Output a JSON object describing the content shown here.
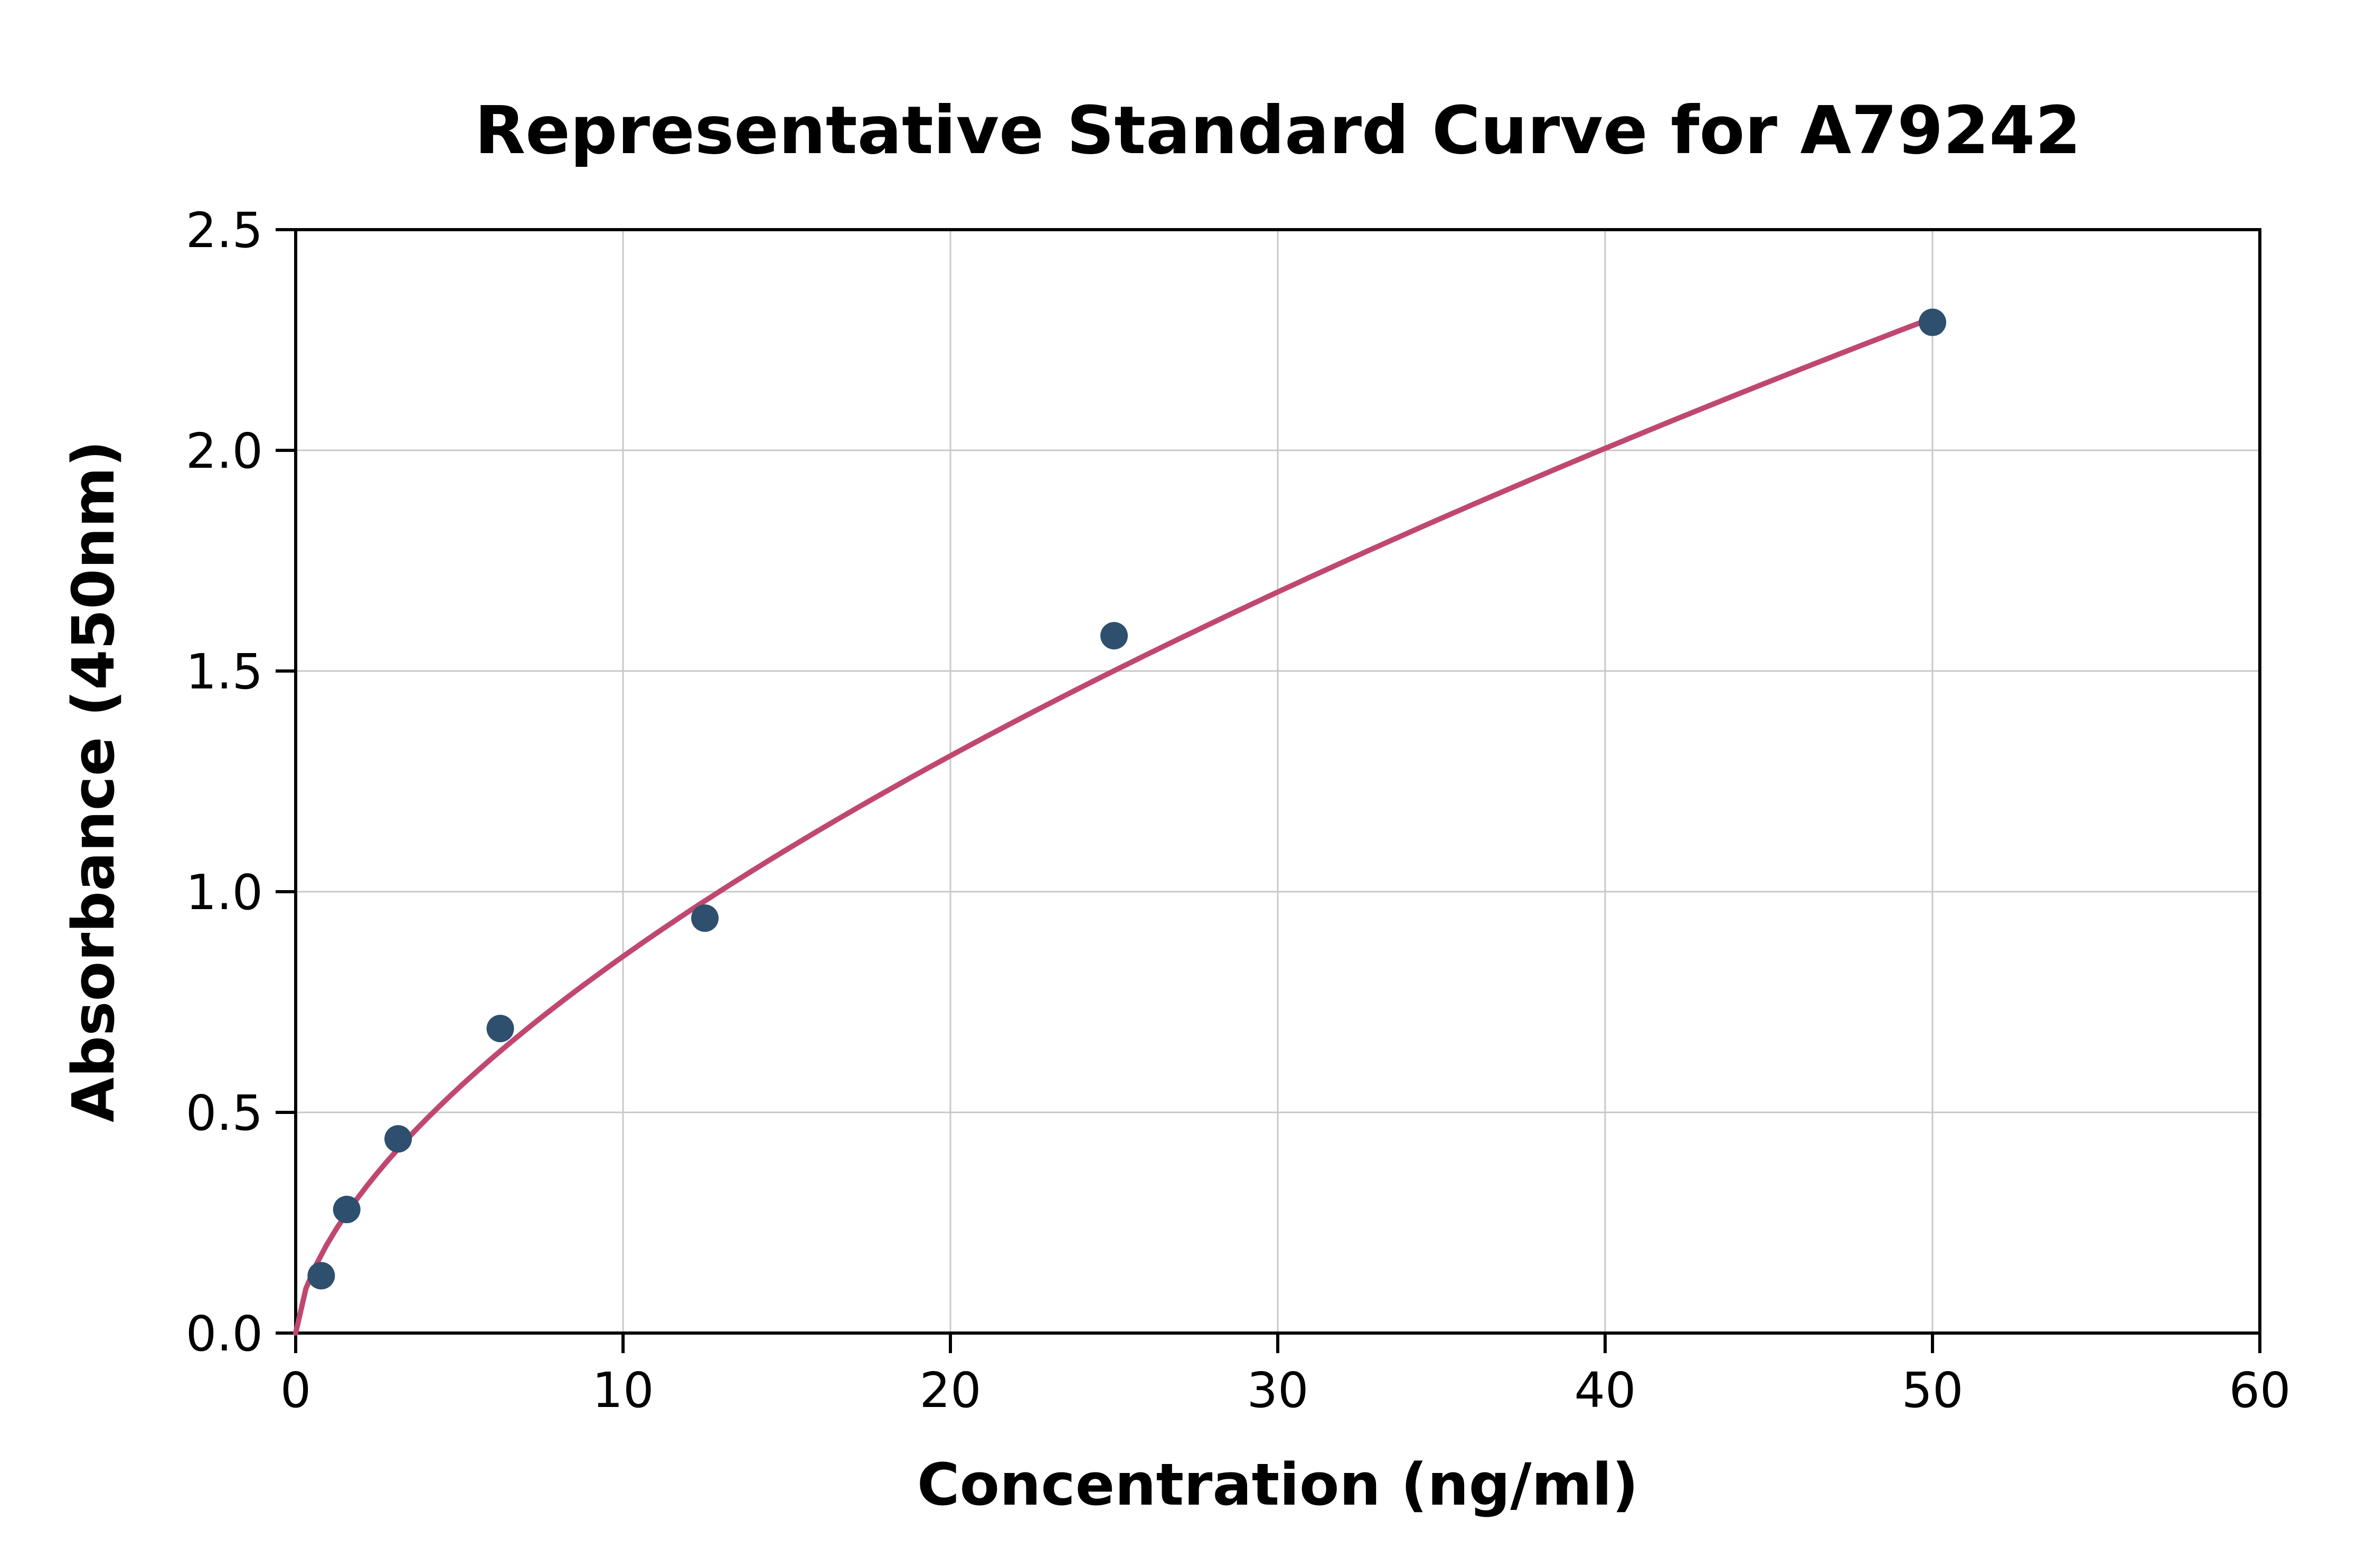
{
  "chart_data": {
    "type": "scatter",
    "title": "Representative Standard Curve for A79242",
    "xlabel": "Concentration (ng/ml)",
    "ylabel": "Absorbance (450nm)",
    "xlim": [
      0,
      60
    ],
    "ylim": [
      0,
      2.5
    ],
    "x_ticks": [
      0,
      10,
      20,
      30,
      40,
      50,
      60
    ],
    "x_tick_labels": [
      "0",
      "10",
      "20",
      "30",
      "40",
      "50",
      "60"
    ],
    "y_ticks": [
      0,
      0.5,
      1.0,
      1.5,
      2.0,
      2.5
    ],
    "y_tick_labels": [
      "0.0",
      "0.5",
      "1.0",
      "1.5",
      "2.0",
      "2.5"
    ],
    "grid": true,
    "legend": "none",
    "points": [
      {
        "x": 0.78,
        "y": 0.13
      },
      {
        "x": 1.56,
        "y": 0.28
      },
      {
        "x": 3.13,
        "y": 0.44
      },
      {
        "x": 6.25,
        "y": 0.69
      },
      {
        "x": 12.5,
        "y": 0.94
      },
      {
        "x": 25.0,
        "y": 1.58
      },
      {
        "x": 50.0,
        "y": 2.29
      }
    ],
    "fit_curve": {
      "model": "power",
      "a": 0.2066,
      "b": 0.616,
      "x_start": 0,
      "x_end": 50
    },
    "colors": {
      "marker": "#2e4f6e",
      "line": "#c0486f",
      "grid": "#c8c8c8",
      "axis": "#000000",
      "background": "#ffffff"
    }
  }
}
